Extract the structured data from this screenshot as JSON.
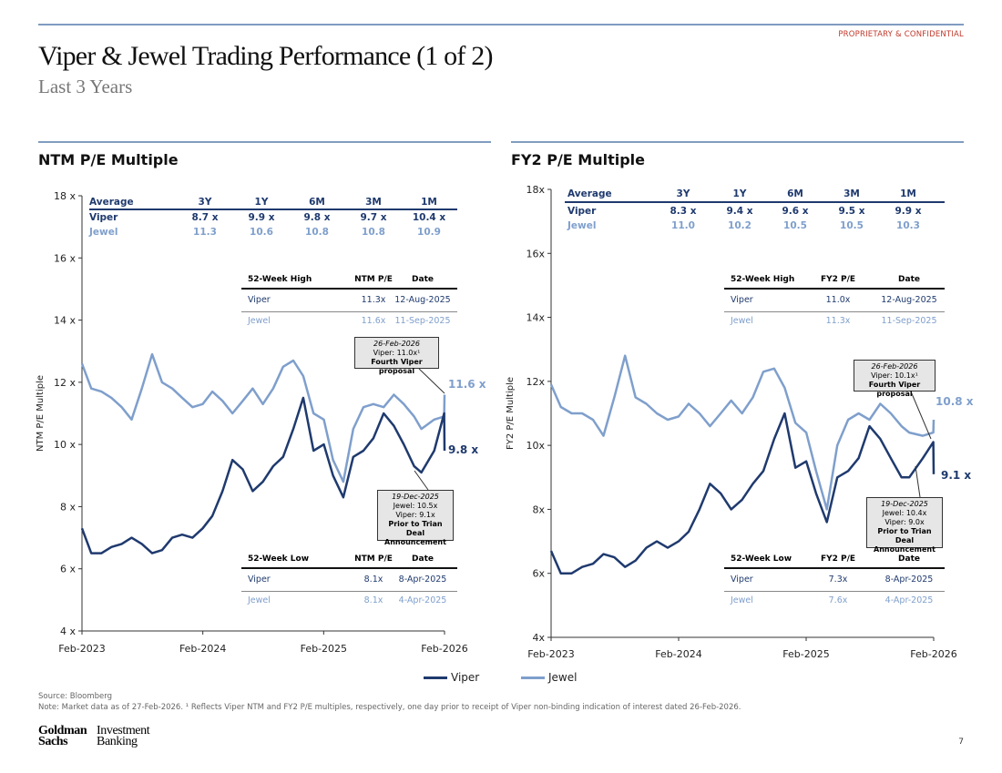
{
  "header": {
    "confidential": "PROPRIETARY & CONFIDENTIAL",
    "title": "Viper & Jewel Trading Performance (1 of 2)",
    "subtitle": "Last 3 Years"
  },
  "colors": {
    "viper": "#1f3a6e",
    "jewel": "#7f9fcc",
    "accent_line": "#7f9cc0",
    "confidential": "#c0392b"
  },
  "legend": {
    "viper": "Viper",
    "jewel": "Jewel"
  },
  "footer": {
    "source": "Source: Bloomberg",
    "note": "Note: Market data as of 27-Feb-2026. ¹ Reflects Viper NTM and FY2 P/E multiples, respectively, one day prior to receipt of Viper non-binding indication of interest dated 26-Feb-2026.",
    "logo_left": "Goldman Sachs",
    "logo_right": "Investment Banking",
    "page": "7"
  },
  "chart_data": [
    {
      "type": "line",
      "title": "NTM P/E Multiple",
      "ylabel": "NTM P/E Multiple",
      "ylim": [
        4,
        18
      ],
      "yticks": [
        "4 x",
        "6 x",
        "8 x",
        "10 x",
        "12 x",
        "14 x",
        "16 x",
        "18 x"
      ],
      "xticks": [
        "Feb-2023",
        "Feb-2024",
        "Feb-2025",
        "Feb-2026"
      ],
      "x": [
        "2023-02-27",
        "2023-03-27",
        "2023-04-27",
        "2023-05-27",
        "2023-06-27",
        "2023-07-27",
        "2023-08-27",
        "2023-09-27",
        "2023-10-27",
        "2023-11-27",
        "2023-12-27",
        "2024-01-27",
        "2024-02-27",
        "2024-03-27",
        "2024-04-27",
        "2024-05-27",
        "2024-06-27",
        "2024-07-27",
        "2024-08-27",
        "2024-09-27",
        "2024-10-27",
        "2024-11-27",
        "2024-12-27",
        "2025-01-27",
        "2025-02-27",
        "2025-03-27",
        "2025-04-27",
        "2025-05-27",
        "2025-06-27",
        "2025-07-27",
        "2025-08-27",
        "2025-09-27",
        "2025-10-27",
        "2025-11-27",
        "2025-12-19",
        "2026-01-27",
        "2026-02-26",
        "2026-02-27"
      ],
      "series": [
        {
          "name": "Viper",
          "values": [
            7.3,
            6.5,
            6.5,
            6.7,
            6.8,
            7.0,
            6.8,
            6.5,
            6.6,
            7.0,
            7.1,
            7.0,
            7.3,
            7.7,
            8.5,
            9.5,
            9.2,
            8.5,
            8.8,
            9.3,
            9.6,
            10.5,
            11.5,
            9.8,
            10.0,
            9.0,
            8.3,
            9.6,
            9.8,
            10.2,
            11.0,
            10.6,
            10.0,
            9.3,
            9.1,
            9.8,
            11.0,
            9.8
          ]
        },
        {
          "name": "Jewel",
          "values": [
            12.6,
            11.8,
            11.7,
            11.5,
            11.2,
            10.8,
            11.8,
            12.9,
            12.0,
            11.8,
            11.5,
            11.2,
            11.3,
            11.7,
            11.4,
            11.0,
            11.4,
            11.8,
            11.3,
            11.8,
            12.5,
            12.7,
            12.2,
            11.0,
            10.8,
            9.5,
            8.8,
            10.5,
            11.2,
            11.3,
            11.2,
            11.6,
            11.3,
            10.9,
            10.5,
            10.8,
            10.9,
            11.6
          ]
        }
      ],
      "end_labels": {
        "jewel": "11.6 x",
        "viper": "9.8 x"
      },
      "averages": {
        "headers": [
          "Average",
          "3Y",
          "1Y",
          "6M",
          "3M",
          "1M"
        ],
        "rows": [
          [
            "Viper",
            "8.7 x",
            "9.9 x",
            "9.8 x",
            "9.7 x",
            "10.4 x"
          ],
          [
            "Jewel",
            "11.3",
            "10.6",
            "10.8",
            "10.8",
            "10.9"
          ]
        ]
      },
      "high_table": {
        "headers": [
          "52-Week High",
          "NTM P/E",
          "Date"
        ],
        "rows": [
          [
            "Viper",
            "11.3x",
            "12-Aug-2025"
          ],
          [
            "Jewel",
            "11.6x",
            "11-Sep-2025"
          ]
        ]
      },
      "low_table": {
        "headers": [
          "52-Week Low",
          "NTM P/E",
          "Date"
        ],
        "rows": [
          [
            "Viper",
            "8.1x",
            "8-Apr-2025"
          ],
          [
            "Jewel",
            "8.1x",
            "4-Apr-2025"
          ]
        ]
      },
      "callouts": [
        {
          "date": "26-Feb-2026",
          "lines": [
            "Viper: 11.0x¹"
          ],
          "bold": "Fourth Viper proposal"
        },
        {
          "date": "19-Dec-2025",
          "lines": [
            "Jewel: 10.5x",
            "Viper: 9.1x"
          ],
          "bold": "Prior to Trian Deal Announcement"
        }
      ]
    },
    {
      "type": "line",
      "title": "FY2 P/E Multiple",
      "ylabel": "FY2 P/E Multiple",
      "ylim": [
        4,
        18
      ],
      "yticks": [
        "4x",
        "6x",
        "8x",
        "10x",
        "12x",
        "14x",
        "16x",
        "18x"
      ],
      "xticks": [
        "Feb-2023",
        "Feb-2024",
        "Feb-2025",
        "Feb-2026"
      ],
      "x": [
        "2023-02-27",
        "2023-03-27",
        "2023-04-27",
        "2023-05-27",
        "2023-06-27",
        "2023-07-27",
        "2023-08-27",
        "2023-09-27",
        "2023-10-27",
        "2023-11-27",
        "2023-12-27",
        "2024-01-27",
        "2024-02-27",
        "2024-03-27",
        "2024-04-27",
        "2024-05-27",
        "2024-06-27",
        "2024-07-27",
        "2024-08-27",
        "2024-09-27",
        "2024-10-27",
        "2024-11-27",
        "2024-12-27",
        "2025-01-27",
        "2025-02-27",
        "2025-03-27",
        "2025-04-27",
        "2025-05-27",
        "2025-06-27",
        "2025-07-27",
        "2025-08-27",
        "2025-09-27",
        "2025-10-27",
        "2025-11-27",
        "2025-12-19",
        "2026-01-27",
        "2026-02-26",
        "2026-02-27"
      ],
      "series": [
        {
          "name": "Viper",
          "values": [
            6.7,
            6.0,
            6.0,
            6.2,
            6.3,
            6.6,
            6.5,
            6.2,
            6.4,
            6.8,
            7.0,
            6.8,
            7.0,
            7.3,
            8.0,
            8.8,
            8.5,
            8.0,
            8.3,
            8.8,
            9.2,
            10.2,
            11.0,
            9.3,
            9.5,
            8.5,
            7.6,
            9.0,
            9.2,
            9.6,
            10.6,
            10.2,
            9.6,
            9.0,
            9.0,
            9.6,
            10.1,
            9.1
          ]
        },
        {
          "name": "Jewel",
          "values": [
            11.9,
            11.2,
            11.0,
            11.0,
            10.8,
            10.3,
            11.5,
            12.8,
            11.5,
            11.3,
            11.0,
            10.8,
            10.9,
            11.3,
            11.0,
            10.6,
            11.0,
            11.4,
            11.0,
            11.5,
            12.3,
            12.4,
            11.8,
            10.7,
            10.4,
            9.2,
            8.0,
            10.0,
            10.8,
            11.0,
            10.8,
            11.3,
            11.0,
            10.6,
            10.4,
            10.3,
            10.4,
            10.8
          ]
        }
      ],
      "end_labels": {
        "jewel": "10.8 x",
        "viper": "9.1 x"
      },
      "averages": {
        "headers": [
          "Average",
          "3Y",
          "1Y",
          "6M",
          "3M",
          "1M"
        ],
        "rows": [
          [
            "Viper",
            "8.3 x",
            "9.4 x",
            "9.6 x",
            "9.5 x",
            "9.9 x"
          ],
          [
            "Jewel",
            "11.0",
            "10.2",
            "10.5",
            "10.5",
            "10.3"
          ]
        ]
      },
      "high_table": {
        "headers": [
          "52-Week High",
          "FY2 P/E",
          "Date"
        ],
        "rows": [
          [
            "Viper",
            "11.0x",
            "12-Aug-2025"
          ],
          [
            "Jewel",
            "11.3x",
            "11-Sep-2025"
          ]
        ]
      },
      "low_table": {
        "headers": [
          "52-Week Low",
          "FY2 P/E",
          "Date"
        ],
        "rows": [
          [
            "Viper",
            "7.3x",
            "8-Apr-2025"
          ],
          [
            "Jewel",
            "7.6x",
            "4-Apr-2025"
          ]
        ]
      },
      "callouts": [
        {
          "date": "26-Feb-2026",
          "lines": [
            "Viper: 10.1x¹"
          ],
          "bold": "Fourth Viper proposal"
        },
        {
          "date": "19-Dec-2025",
          "lines": [
            "Jewel: 10.4x",
            "Viper: 9.0x"
          ],
          "bold": "Prior to Trian Deal Announcement"
        }
      ]
    }
  ]
}
